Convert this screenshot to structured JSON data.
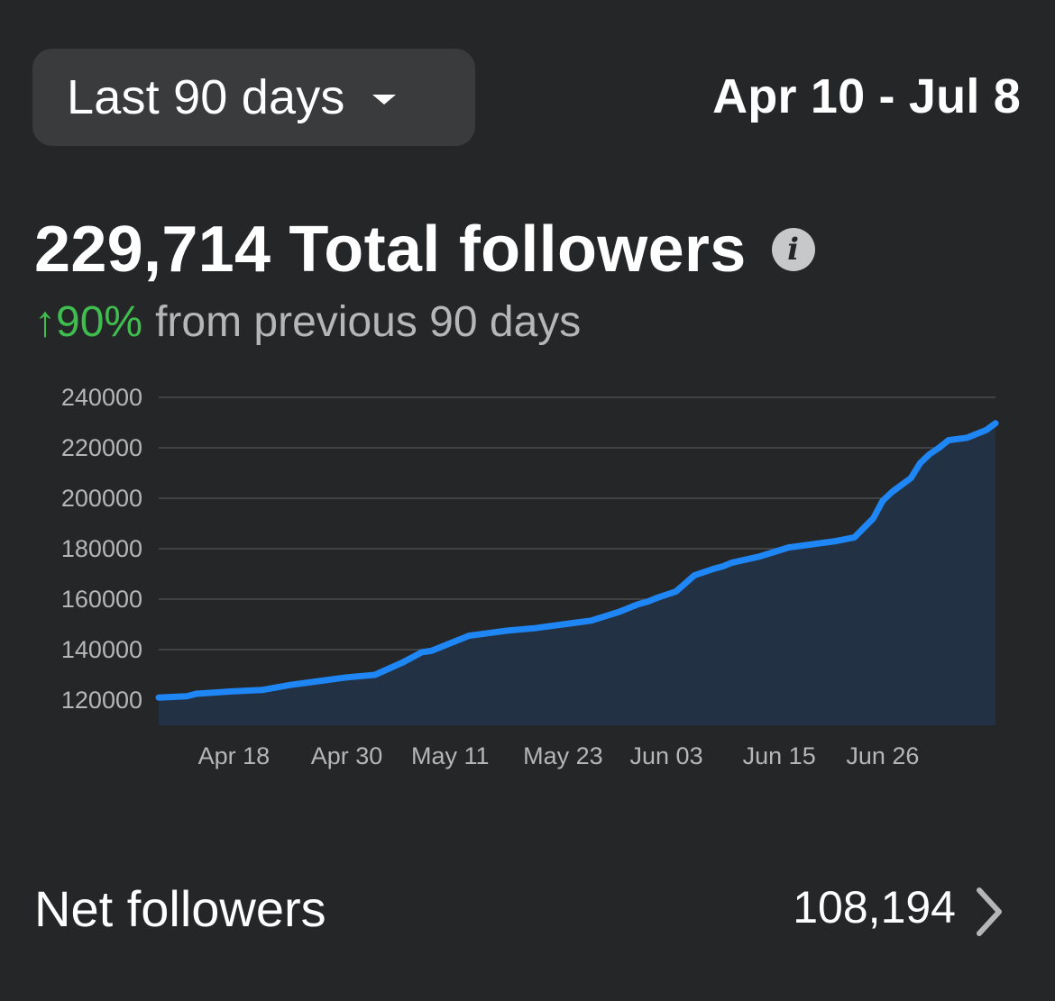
{
  "header": {
    "range_selector": {
      "label": "Last 90 days",
      "icon": "caret-down-icon"
    },
    "date_range": "Apr 10 - Jul 8"
  },
  "summary": {
    "total_count": "229,714",
    "total_label": "Total followers",
    "info_icon": "info-icon",
    "info_glyph": "i",
    "change_percent": "↑90%",
    "change_text": "from previous 90 days",
    "change_color": "#3fbe4f"
  },
  "chart_data": {
    "type": "area",
    "title": "",
    "xlabel": "",
    "ylabel": "",
    "ylim": [
      110000,
      240000
    ],
    "yticks": [
      120000,
      140000,
      160000,
      180000,
      200000,
      220000,
      240000
    ],
    "ytick_labels": [
      "120000",
      "140000",
      "160000",
      "180000",
      "200000",
      "220000",
      "240000"
    ],
    "xticks": [
      8,
      20,
      31,
      43,
      54,
      66,
      77
    ],
    "xtick_labels": [
      "Apr 18",
      "Apr 30",
      "May 11",
      "May 23",
      "Jun 03",
      "Jun 15",
      "Jun 26"
    ],
    "xlim": [
      0,
      89
    ],
    "line_color": "#1f86f5",
    "fill_color": "#223244",
    "series": [
      {
        "name": "Total followers",
        "x": [
          0,
          3,
          4,
          6,
          8,
          11,
          14,
          17,
          20,
          23,
          26,
          27,
          28,
          29,
          31,
          33,
          34,
          37,
          40,
          43,
          46,
          49,
          51,
          52,
          53,
          55,
          57,
          59,
          60,
          61,
          64,
          67,
          70,
          72,
          74,
          76,
          77,
          78,
          80,
          81,
          82,
          83,
          84,
          86,
          88,
          89
        ],
        "values": [
          121000,
          121500,
          122500,
          123000,
          123500,
          124000,
          126000,
          127500,
          129000,
          130000,
          135000,
          137000,
          139000,
          139500,
          142500,
          145500,
          146000,
          147500,
          148500,
          150000,
          151500,
          155000,
          158000,
          159000,
          160500,
          163000,
          169500,
          172000,
          173000,
          174500,
          177000,
          180500,
          182000,
          183000,
          184500,
          192000,
          199000,
          202500,
          208000,
          214000,
          217500,
          220000,
          223000,
          224000,
          227000,
          229714
        ]
      }
    ]
  },
  "net_followers": {
    "label": "Net followers",
    "value": "108,194",
    "icon": "chevron-right-icon"
  }
}
